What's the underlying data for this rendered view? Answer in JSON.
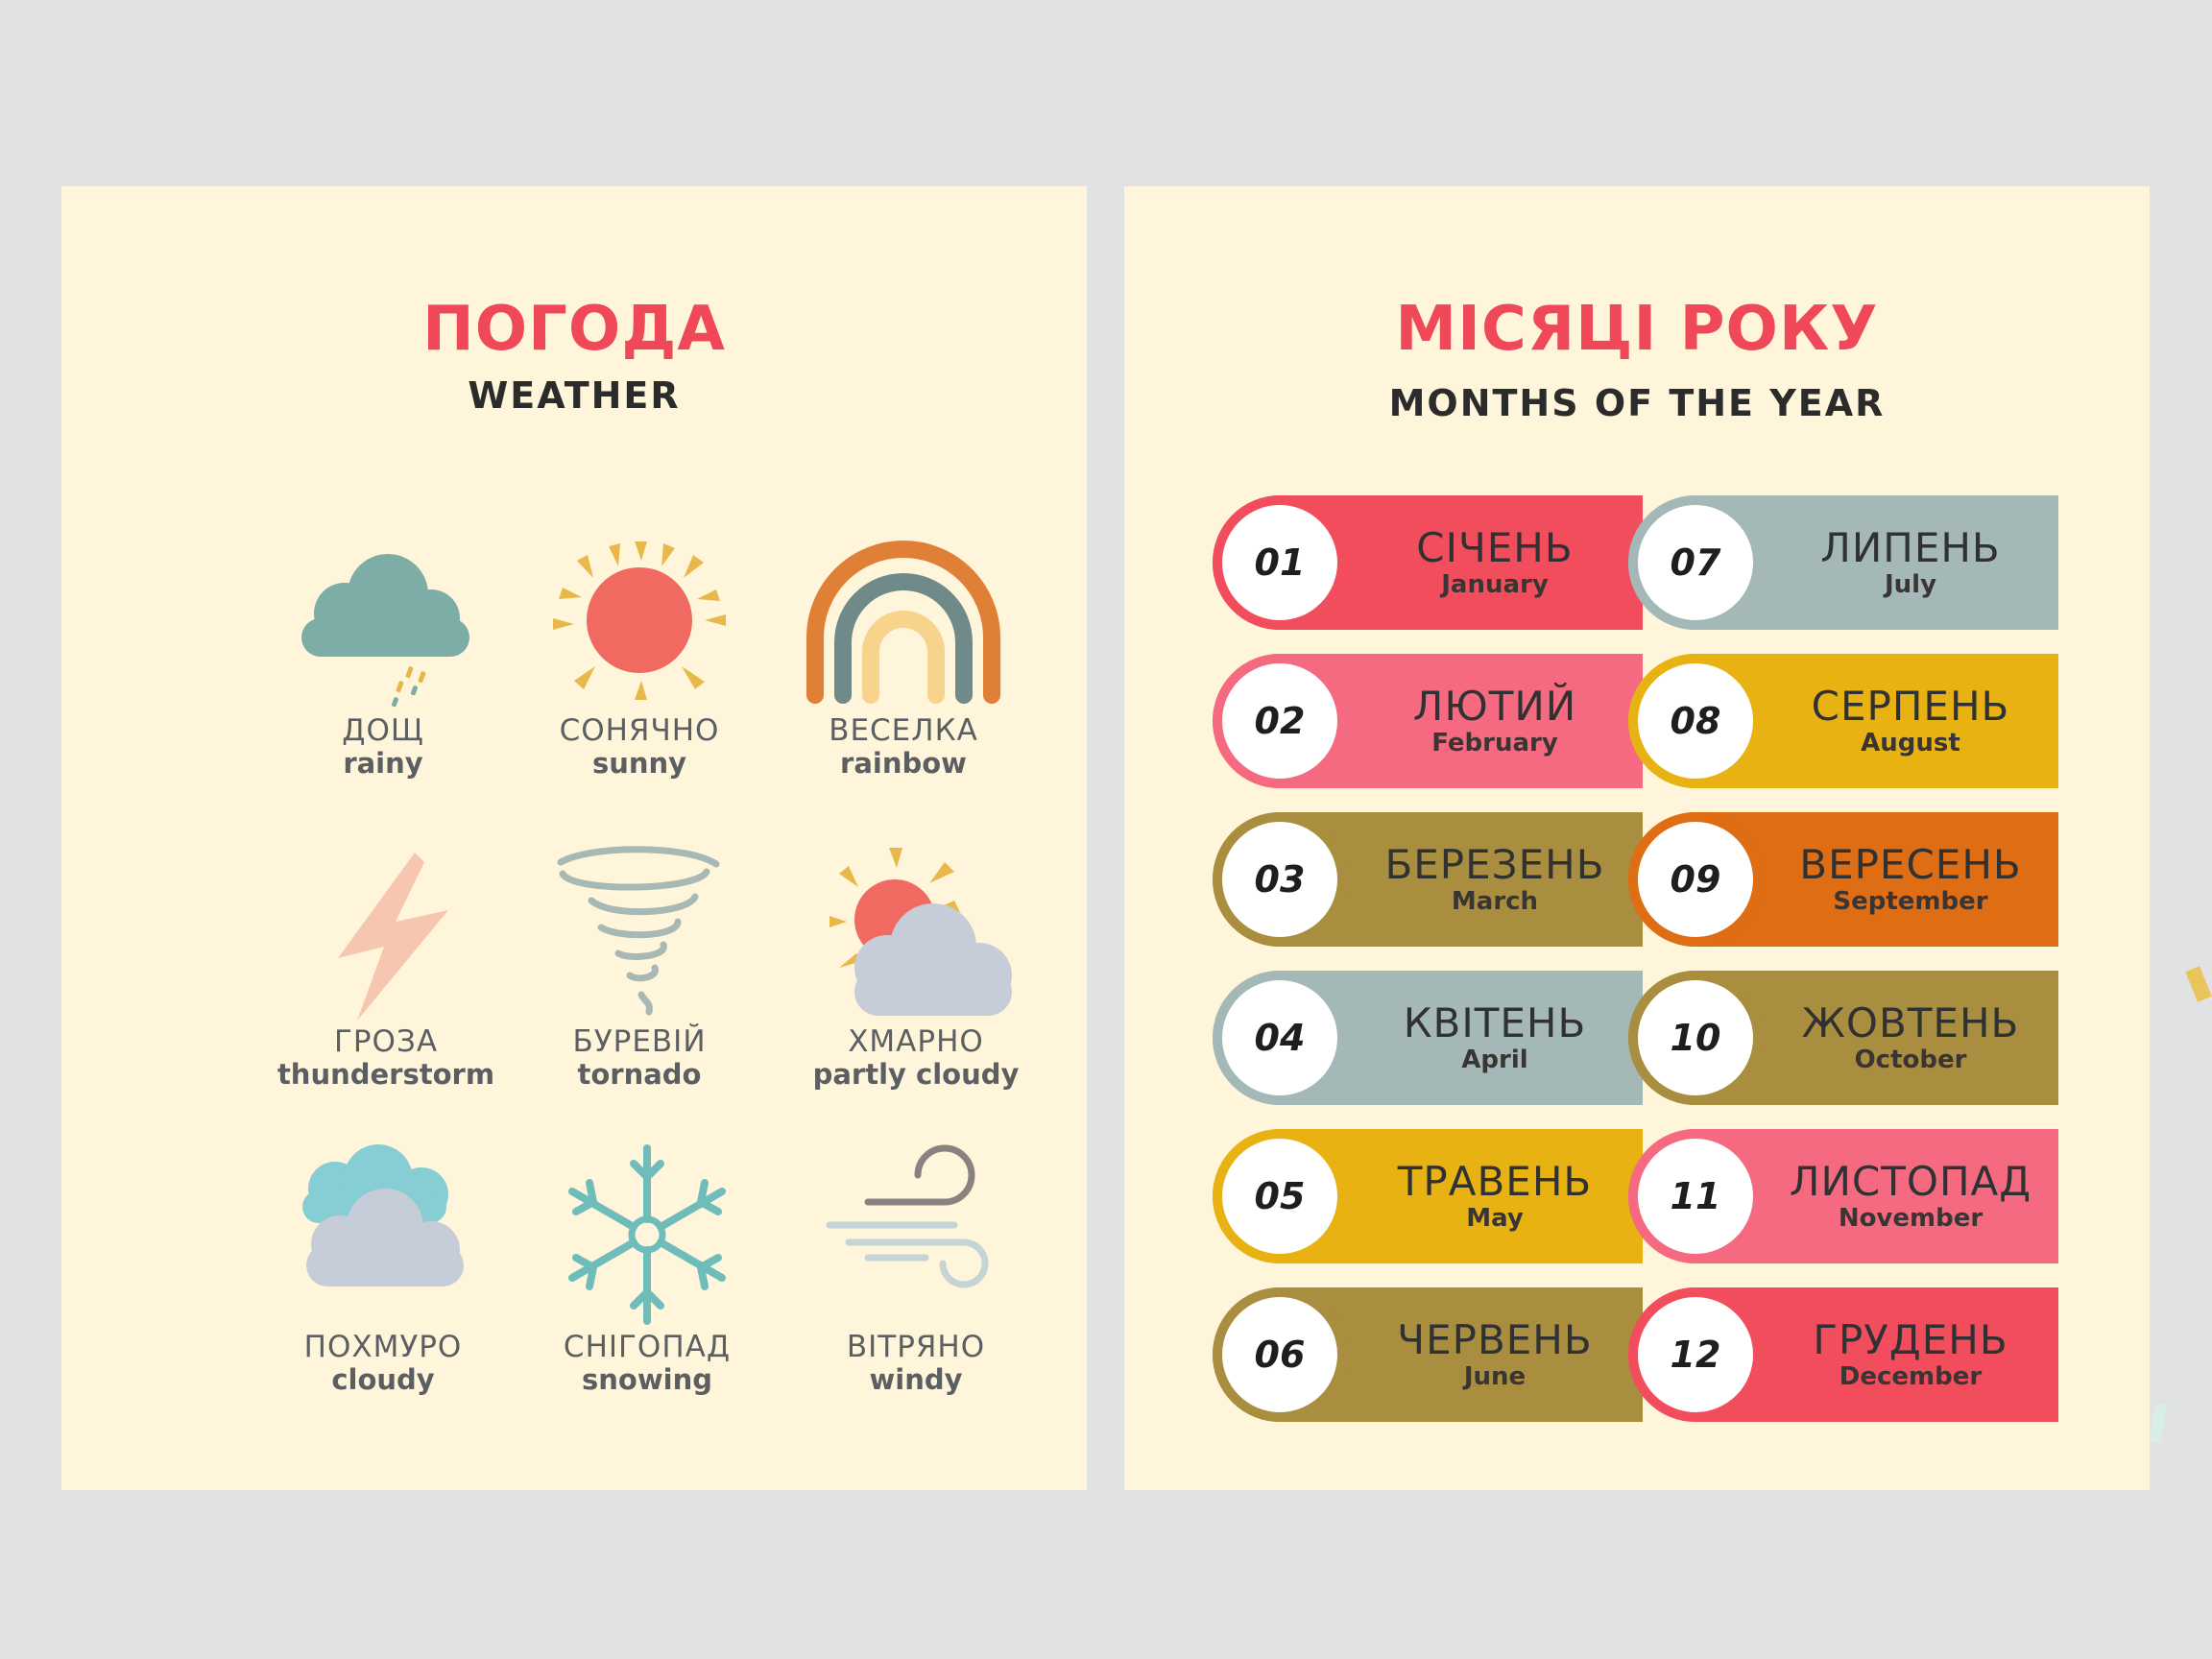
{
  "weather": {
    "title": "ПОГОДА",
    "subtitle": "WEATHER",
    "items": [
      {
        "ua": "ДОЩ",
        "en": "rainy",
        "icon": "rain-cloud-icon"
      },
      {
        "ua": "СОНЯЧНО",
        "en": "sunny",
        "icon": "sun-icon"
      },
      {
        "ua": "ВЕСЕЛКА",
        "en": "rainbow",
        "icon": "rainbow-icon"
      },
      {
        "ua": "ГРОЗА",
        "en": "thunderstorm",
        "icon": "lightning-icon"
      },
      {
        "ua": "БУРЕВІЙ",
        "en": "tornado",
        "icon": "tornado-icon"
      },
      {
        "ua": "ХМАРНО",
        "en": "partly cloudy",
        "icon": "sun-cloud-icon"
      },
      {
        "ua": "ПОХМУРО",
        "en": "cloudy",
        "icon": "clouds-icon"
      },
      {
        "ua": "СНІГОПАД",
        "en": "snowing",
        "icon": "snowflake-icon"
      },
      {
        "ua": "ВІТРЯНО",
        "en": "windy",
        "icon": "wind-icon"
      }
    ]
  },
  "months": {
    "title": "МІСЯЦІ РОКУ",
    "subtitle": "MONTHS OF THE YEAR",
    "items": [
      {
        "num": "01",
        "ua": "СІЧЕНЬ",
        "en": "January",
        "color": "#f24d5c"
      },
      {
        "num": "02",
        "ua": "ЛЮТИЙ",
        "en": "February",
        "color": "#f56a80"
      },
      {
        "num": "03",
        "ua": "БЕРЕЗЕНЬ",
        "en": "March",
        "color": "#a98e40"
      },
      {
        "num": "04",
        "ua": "КВІТЕНЬ",
        "en": "April",
        "color": "#a4b9b7"
      },
      {
        "num": "05",
        "ua": "ТРАВЕНЬ",
        "en": "May",
        "color": "#e8b312"
      },
      {
        "num": "06",
        "ua": "ЧЕРВЕНЬ",
        "en": "June",
        "color": "#a98e40"
      },
      {
        "num": "07",
        "ua": "ЛИПЕНЬ",
        "en": "July",
        "color": "#a4b9b7"
      },
      {
        "num": "08",
        "ua": "СЕРПЕНЬ",
        "en": "August",
        "color": "#e8b312"
      },
      {
        "num": "09",
        "ua": "ВЕРЕСЕНЬ",
        "en": "September",
        "color": "#de6d14"
      },
      {
        "num": "10",
        "ua": "ЖОВТЕНЬ",
        "en": "October",
        "color": "#a98e40"
      },
      {
        "num": "11",
        "ua": "ЛИСТОПАД",
        "en": "November",
        "color": "#f56a80"
      },
      {
        "num": "12",
        "ua": "ГРУДЕНЬ",
        "en": "December",
        "color": "#f24d5c"
      }
    ]
  }
}
